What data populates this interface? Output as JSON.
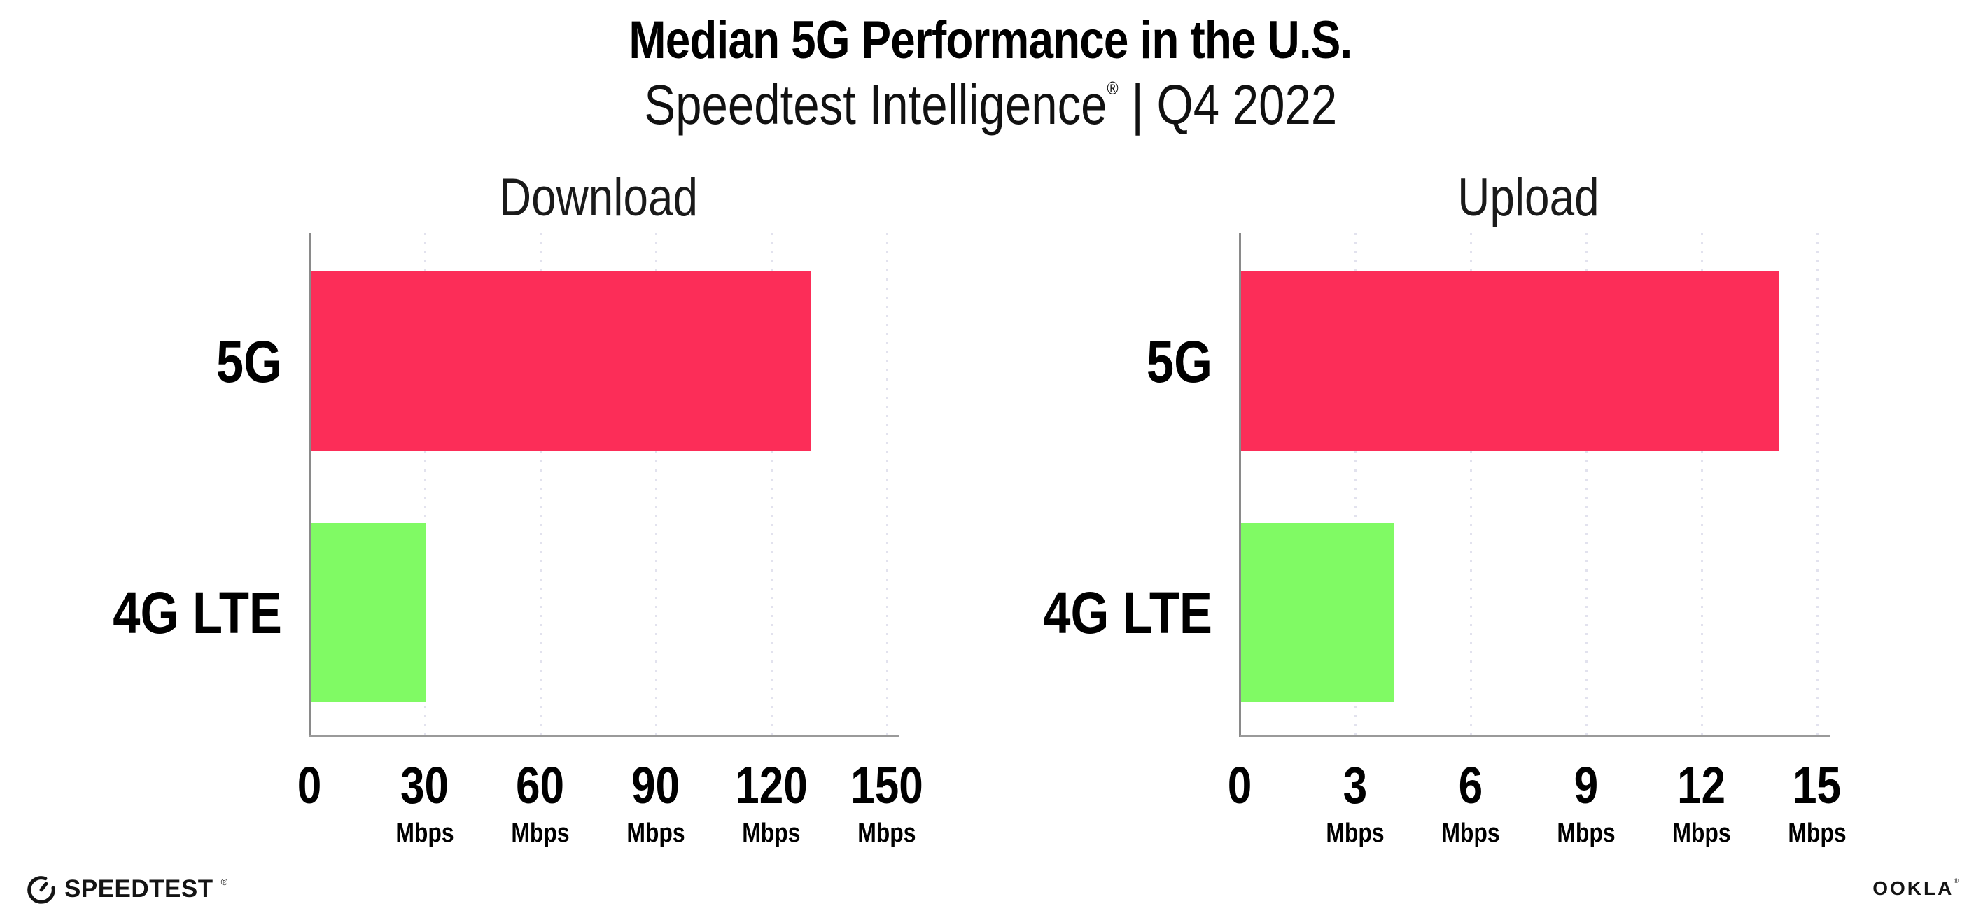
{
  "header": {
    "title": "Median 5G Performance in the U.S.",
    "subtitle_brand": "Speedtest Intelligence",
    "subtitle_reg": "®",
    "subtitle_rest": " | Q4 2022"
  },
  "footer": {
    "speedtest_icon": "speedtest-gauge-icon",
    "speedtest_logo_text": "SPEEDTEST",
    "speedtest_reg": "®",
    "ookla_logo_text": "OOKLA",
    "ookla_reg": "®"
  },
  "colors": {
    "bar_5g": "#FC2D58",
    "bar_4g_lte": "#80FA64",
    "gridline": "#E2E2EE",
    "axis": "#8A8A8A",
    "baseline": "#9A9A9A",
    "text": "#000000"
  },
  "chart_data": [
    {
      "type": "bar",
      "orientation": "horizontal",
      "title": "Download",
      "categories": [
        "5G",
        "4G LTE"
      ],
      "values": [
        130,
        30
      ],
      "unit": "Mbps",
      "xlim": [
        0,
        150
      ],
      "xticks": [
        0,
        30,
        60,
        90,
        120,
        150
      ],
      "tick_unit_label": "Mbps",
      "grid": "dotted-vertical",
      "legend": "none",
      "bar_colors": [
        "#FC2D58",
        "#80FA64"
      ]
    },
    {
      "type": "bar",
      "orientation": "horizontal",
      "title": "Upload",
      "categories": [
        "5G",
        "4G LTE"
      ],
      "values": [
        14,
        4
      ],
      "unit": "Mbps",
      "xlim": [
        0,
        15
      ],
      "xticks": [
        0,
        3,
        6,
        9,
        12,
        15
      ],
      "tick_unit_label": "Mbps",
      "grid": "dotted-vertical",
      "legend": "none",
      "bar_colors": [
        "#FC2D58",
        "#80FA64"
      ]
    }
  ]
}
